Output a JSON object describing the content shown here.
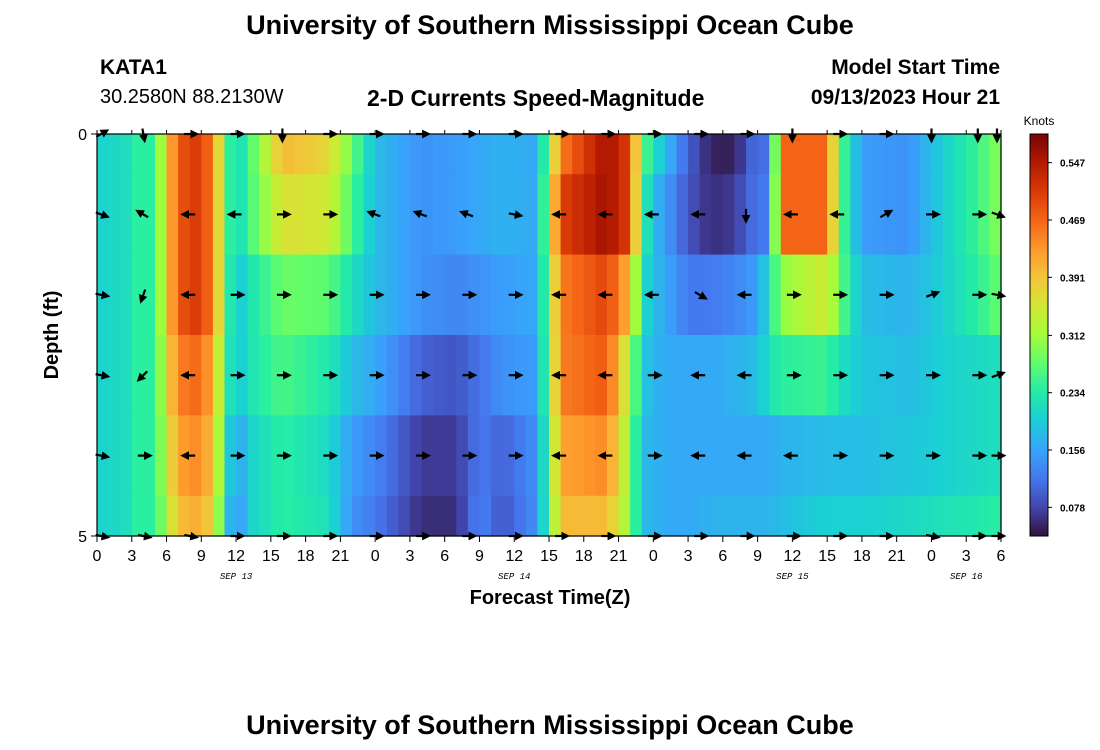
{
  "header": {
    "title": "University of Southern Mississippi Ocean Cube",
    "station_id": "KATA1",
    "station_coords": "30.2580N  88.2130W",
    "chart_title": "2-D Currents Speed-Magnitude",
    "model_start_label": "Model Start Time",
    "model_start_time": "09/13/2023 Hour 21"
  },
  "footer": {
    "title": "University of Southern Mississippi Ocean Cube"
  },
  "chart_data": {
    "type": "heatmap",
    "title": "2-D Currents Speed-Magnitude",
    "xlabel": "Forecast Time(Z)",
    "ylabel": "Depth (ft)",
    "x_start": "09/13/2023 00Z",
    "x_step_hours": 1,
    "x_hours": 78,
    "xlim": [
      0,
      78
    ],
    "ylim": [
      0,
      5
    ],
    "y_ticks": [
      "0",
      "5"
    ],
    "x_tick_labels": [
      "0",
      "3",
      "6",
      "9",
      "12",
      "15",
      "18",
      "21",
      "0",
      "3",
      "6",
      "9",
      "12",
      "15",
      "18",
      "21",
      "0",
      "3",
      "6",
      "9",
      "12",
      "15",
      "18",
      "21",
      "0",
      "3",
      "6"
    ],
    "date_labels": [
      {
        "label": "SEP 13",
        "hour": 12
      },
      {
        "label": "SEP 14",
        "hour": 36
      },
      {
        "label": "SEP 15",
        "hour": 60
      },
      {
        "label": "SEP 16",
        "hour": 75
      }
    ],
    "colorbar": {
      "title": "Knots",
      "min": 0.039,
      "max": 0.586,
      "ticks": [
        "0.547",
        "0.469",
        "0.391",
        "0.312",
        "0.234",
        "0.156",
        "0.078"
      ]
    },
    "depth_rows": [
      "0.0-0.5",
      "0.5-1.5",
      "1.5-2.5",
      "2.5-3.5",
      "3.5-4.5",
      "4.5-5.0"
    ],
    "speed_profiles": [
      [
        [
          0,
          0.2
        ],
        [
          3,
          0.22
        ],
        [
          4,
          0.26
        ],
        [
          5,
          0.22
        ],
        [
          6,
          0.4
        ],
        [
          8,
          0.52
        ],
        [
          10,
          0.46
        ],
        [
          11,
          0.28
        ],
        [
          12,
          0.2
        ],
        [
          13,
          0.25
        ],
        [
          16,
          0.4
        ],
        [
          20,
          0.37
        ],
        [
          22,
          0.28
        ],
        [
          24,
          0.18
        ],
        [
          28,
          0.14
        ],
        [
          31,
          0.15
        ],
        [
          35,
          0.17
        ],
        [
          38,
          0.16
        ],
        [
          40,
          0.45
        ],
        [
          44,
          0.56
        ],
        [
          46,
          0.5
        ],
        [
          47,
          0.28
        ],
        [
          48,
          0.22
        ],
        [
          50,
          0.14
        ],
        [
          51,
          0.1
        ],
        [
          53,
          0.05
        ],
        [
          55,
          0.05
        ],
        [
          57,
          0.12
        ],
        [
          58,
          0.1
        ],
        [
          59,
          0.47
        ],
        [
          63,
          0.47
        ],
        [
          64,
          0.28
        ],
        [
          66,
          0.15
        ],
        [
          70,
          0.14
        ],
        [
          73,
          0.2
        ],
        [
          76,
          0.25
        ],
        [
          78,
          0.3
        ]
      ],
      [
        [
          0,
          0.2
        ],
        [
          3,
          0.22
        ],
        [
          4,
          0.26
        ],
        [
          5,
          0.22
        ],
        [
          6,
          0.4
        ],
        [
          8,
          0.52
        ],
        [
          10,
          0.46
        ],
        [
          11,
          0.28
        ],
        [
          12,
          0.2
        ],
        [
          13,
          0.25
        ],
        [
          16,
          0.36
        ],
        [
          20,
          0.35
        ],
        [
          22,
          0.26
        ],
        [
          24,
          0.18
        ],
        [
          28,
          0.14
        ],
        [
          31,
          0.15
        ],
        [
          35,
          0.17
        ],
        [
          38,
          0.16
        ],
        [
          40,
          0.5
        ],
        [
          44,
          0.56
        ],
        [
          46,
          0.5
        ],
        [
          47,
          0.26
        ],
        [
          48,
          0.18
        ],
        [
          50,
          0.12
        ],
        [
          51,
          0.09
        ],
        [
          53,
          0.06
        ],
        [
          55,
          0.07
        ],
        [
          57,
          0.12
        ],
        [
          58,
          0.12
        ],
        [
          59,
          0.47
        ],
        [
          63,
          0.47
        ],
        [
          64,
          0.28
        ],
        [
          66,
          0.15
        ],
        [
          70,
          0.14
        ],
        [
          73,
          0.2
        ],
        [
          76,
          0.25
        ],
        [
          78,
          0.3
        ]
      ],
      [
        [
          0,
          0.2
        ],
        [
          3,
          0.22
        ],
        [
          4,
          0.26
        ],
        [
          5,
          0.22
        ],
        [
          6,
          0.4
        ],
        [
          8,
          0.52
        ],
        [
          10,
          0.46
        ],
        [
          11,
          0.28
        ],
        [
          12,
          0.18
        ],
        [
          13,
          0.22
        ],
        [
          16,
          0.28
        ],
        [
          20,
          0.27
        ],
        [
          22,
          0.22
        ],
        [
          24,
          0.18
        ],
        [
          28,
          0.14
        ],
        [
          31,
          0.13
        ],
        [
          35,
          0.15
        ],
        [
          38,
          0.16
        ],
        [
          40,
          0.45
        ],
        [
          44,
          0.5
        ],
        [
          46,
          0.4
        ],
        [
          47,
          0.22
        ],
        [
          48,
          0.18
        ],
        [
          50,
          0.14
        ],
        [
          51,
          0.12
        ],
        [
          53,
          0.12
        ],
        [
          55,
          0.13
        ],
        [
          57,
          0.15
        ],
        [
          58,
          0.22
        ],
        [
          59,
          0.3
        ],
        [
          63,
          0.35
        ],
        [
          64,
          0.28
        ],
        [
          66,
          0.18
        ],
        [
          70,
          0.17
        ],
        [
          73,
          0.2
        ],
        [
          76,
          0.24
        ],
        [
          78,
          0.28
        ]
      ],
      [
        [
          0,
          0.2
        ],
        [
          3,
          0.22
        ],
        [
          4,
          0.26
        ],
        [
          5,
          0.22
        ],
        [
          6,
          0.38
        ],
        [
          8,
          0.48
        ],
        [
          10,
          0.42
        ],
        [
          11,
          0.26
        ],
        [
          12,
          0.18
        ],
        [
          13,
          0.22
        ],
        [
          16,
          0.26
        ],
        [
          20,
          0.23
        ],
        [
          22,
          0.18
        ],
        [
          24,
          0.16
        ],
        [
          28,
          0.1
        ],
        [
          31,
          0.09
        ],
        [
          35,
          0.14
        ],
        [
          38,
          0.15
        ],
        [
          40,
          0.45
        ],
        [
          44,
          0.48
        ],
        [
          46,
          0.32
        ],
        [
          47,
          0.2
        ],
        [
          48,
          0.17
        ],
        [
          50,
          0.16
        ],
        [
          51,
          0.16
        ],
        [
          53,
          0.16
        ],
        [
          55,
          0.17
        ],
        [
          57,
          0.18
        ],
        [
          58,
          0.22
        ],
        [
          59,
          0.24
        ],
        [
          63,
          0.25
        ],
        [
          64,
          0.22
        ],
        [
          66,
          0.19
        ],
        [
          70,
          0.18
        ],
        [
          73,
          0.2
        ],
        [
          76,
          0.21
        ],
        [
          78,
          0.22
        ]
      ],
      [
        [
          0,
          0.2
        ],
        [
          3,
          0.22
        ],
        [
          4,
          0.26
        ],
        [
          5,
          0.22
        ],
        [
          6,
          0.36
        ],
        [
          8,
          0.45
        ],
        [
          10,
          0.4
        ],
        [
          11,
          0.24
        ],
        [
          12,
          0.14
        ],
        [
          13,
          0.2
        ],
        [
          16,
          0.24
        ],
        [
          20,
          0.21
        ],
        [
          22,
          0.15
        ],
        [
          24,
          0.13
        ],
        [
          28,
          0.07
        ],
        [
          31,
          0.07
        ],
        [
          33,
          0.12
        ],
        [
          35,
          0.1
        ],
        [
          38,
          0.14
        ],
        [
          40,
          0.42
        ],
        [
          44,
          0.44
        ],
        [
          46,
          0.3
        ],
        [
          47,
          0.18
        ],
        [
          48,
          0.17
        ],
        [
          50,
          0.16
        ],
        [
          51,
          0.16
        ],
        [
          53,
          0.16
        ],
        [
          55,
          0.16
        ],
        [
          57,
          0.16
        ],
        [
          58,
          0.16
        ],
        [
          59,
          0.17
        ],
        [
          63,
          0.18
        ],
        [
          64,
          0.18
        ],
        [
          66,
          0.18
        ],
        [
          70,
          0.19
        ],
        [
          73,
          0.2
        ],
        [
          76,
          0.21
        ],
        [
          78,
          0.22
        ]
      ],
      [
        [
          0,
          0.2
        ],
        [
          3,
          0.22
        ],
        [
          4,
          0.26
        ],
        [
          5,
          0.22
        ],
        [
          6,
          0.34
        ],
        [
          8,
          0.42
        ],
        [
          10,
          0.38
        ],
        [
          11,
          0.22
        ],
        [
          12,
          0.12
        ],
        [
          13,
          0.2
        ],
        [
          16,
          0.24
        ],
        [
          20,
          0.22
        ],
        [
          22,
          0.14
        ],
        [
          24,
          0.12
        ],
        [
          28,
          0.06
        ],
        [
          31,
          0.06
        ],
        [
          33,
          0.13
        ],
        [
          35,
          0.09
        ],
        [
          38,
          0.14
        ],
        [
          40,
          0.4
        ],
        [
          44,
          0.4
        ],
        [
          46,
          0.3
        ],
        [
          47,
          0.18
        ],
        [
          48,
          0.17
        ],
        [
          50,
          0.16
        ],
        [
          51,
          0.16
        ],
        [
          53,
          0.17
        ],
        [
          55,
          0.17
        ],
        [
          57,
          0.17
        ],
        [
          58,
          0.17
        ],
        [
          59,
          0.18
        ],
        [
          63,
          0.2
        ],
        [
          64,
          0.2
        ],
        [
          66,
          0.2
        ],
        [
          70,
          0.21
        ],
        [
          73,
          0.22
        ],
        [
          76,
          0.23
        ],
        [
          78,
          0.24
        ]
      ]
    ],
    "arrow_depths": [
      0,
      1,
      2,
      3,
      4,
      5
    ],
    "arrow_hours": [
      0,
      4,
      8,
      12,
      16,
      20,
      24,
      28,
      32,
      36,
      40,
      44,
      48,
      52,
      56,
      60,
      64,
      68,
      72,
      76,
      78
    ],
    "arrow_directions_deg": [
      [
        -30,
        80,
        0,
        0,
        90,
        0,
        0,
        0,
        0,
        0,
        0,
        0,
        0,
        0,
        0,
        90,
        0,
        0,
        90,
        90,
        90
      ],
      [
        20,
        210,
        180,
        180,
        0,
        0,
        200,
        200,
        200,
        10,
        180,
        180,
        180,
        180,
        90,
        180,
        180,
        -30,
        0,
        0,
        20
      ],
      [
        10,
        110,
        180,
        0,
        0,
        0,
        0,
        0,
        0,
        0,
        180,
        180,
        180,
        30,
        180,
        0,
        0,
        0,
        -20,
        0,
        10
      ],
      [
        10,
        135,
        180,
        0,
        0,
        0,
        0,
        0,
        0,
        0,
        180,
        180,
        0,
        180,
        180,
        0,
        0,
        0,
        0,
        0,
        -20
      ],
      [
        10,
        0,
        180,
        0,
        0,
        0,
        0,
        0,
        0,
        0,
        180,
        180,
        0,
        180,
        180,
        180,
        0,
        0,
        0,
        0,
        0
      ],
      [
        10,
        10,
        10,
        0,
        0,
        0,
        0,
        0,
        0,
        0,
        0,
        0,
        0,
        0,
        0,
        0,
        0,
        0,
        10,
        0,
        0
      ]
    ]
  }
}
